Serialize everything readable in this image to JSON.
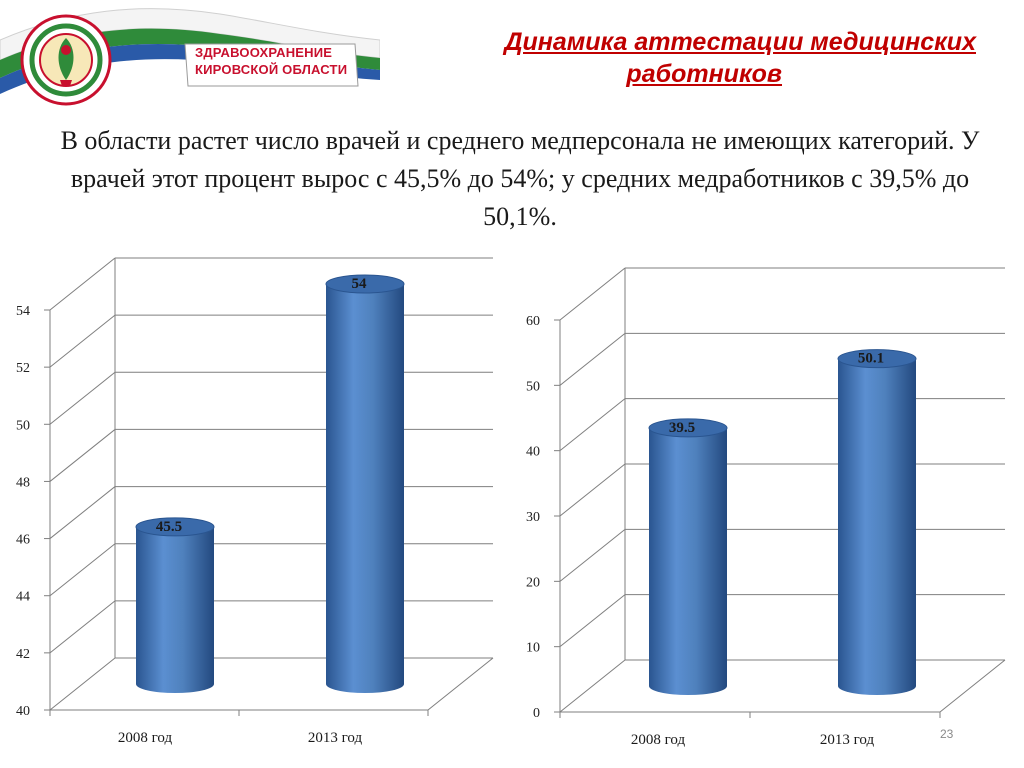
{
  "header": {
    "banner_line1": "ЗДРАВООХРАНЕНИЕ",
    "banner_line2": "КИРОВСКОЙ ОБЛАСТИ",
    "title_line1": "Динамика аттестации медицинских",
    "title_line2": "работников"
  },
  "summary": "В области растет число врачей и среднего медперсонала не имеющих категорий. У врачей этот процент вырос с 45,5% до 54%; у средних медработников с 39,5% до 50,1%.",
  "colors": {
    "bar": "#4f81bd",
    "bar_dark": "#2a5590",
    "title": "#c00000",
    "banner_green": "#2f8b3a",
    "banner_blue": "#2a5aa8"
  },
  "chart_data": [
    {
      "type": "bar",
      "style": "3d-cylinder",
      "categories": [
        "2008 год",
        "2013 год"
      ],
      "values": [
        45.5,
        54
      ],
      "data_labels": [
        "45.5",
        "54"
      ],
      "ylim": [
        40,
        54
      ],
      "yticks": [
        40,
        42,
        44,
        46,
        48,
        50,
        52,
        54
      ],
      "grid": true,
      "legend": "none"
    },
    {
      "type": "bar",
      "style": "3d-cylinder",
      "categories": [
        "2008 год",
        "2013 год"
      ],
      "values": [
        39.5,
        50.1
      ],
      "data_labels": [
        "39.5",
        "50.1"
      ],
      "ylim": [
        0,
        60
      ],
      "yticks": [
        0,
        10,
        20,
        30,
        40,
        50,
        60
      ],
      "grid": true,
      "legend": "none"
    }
  ],
  "footer": {
    "page_number": "23"
  }
}
